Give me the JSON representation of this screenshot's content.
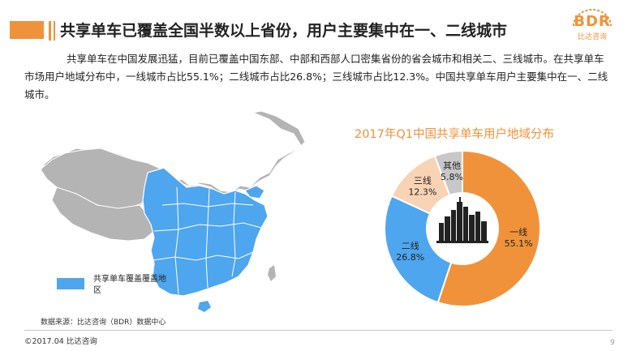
{
  "header": {
    "title": "共享单车已覆盖全国半数以上省份，用户主要集中在一、二线城市"
  },
  "logo": {
    "text": "BDR",
    "sub": "比达咨询"
  },
  "intro": {
    "text": "共享单车在中国发展迅猛，目前已覆盖中国东部、中部和西部人口密集省份的省会城市和相关二、三线城市。在共享单车市场用户地域分布中，一线城市占比55.1%；二线城市占比26.8%；三线城市占比12.3%。中国共享单车用户主要集中在一、二线城市。"
  },
  "map": {
    "legend_label": "共享单车覆盖覆盖地区",
    "covered_color": "#4ea6ee",
    "uncovered_color": "#b4b4b4"
  },
  "colors": {
    "accent": "#f0923a",
    "tier1": "#f0923a",
    "tier2": "#4ea6ee",
    "tier3": "#f8d3b4",
    "other": "#c8c8c8"
  },
  "chart_data": {
    "type": "pie",
    "title": "2017年Q1中国共享单车用户地域分布",
    "donut": true,
    "slices": [
      {
        "label": "一线",
        "value": 55.1,
        "value_label": "55.1%",
        "color": "#f0923a"
      },
      {
        "label": "二线",
        "value": 26.8,
        "value_label": "26.8%",
        "color": "#4ea6ee"
      },
      {
        "label": "三线",
        "value": 12.3,
        "value_label": "12.3%",
        "color": "#f8d3b4"
      },
      {
        "label": "其他",
        "value": 5.8,
        "value_label": "5.8%",
        "color": "#c8c8c8"
      }
    ]
  },
  "footer": {
    "source": "数据来源：比达咨询（BDR）数据中心",
    "copyright": "©2017.04   比达咨询",
    "page": "9"
  }
}
